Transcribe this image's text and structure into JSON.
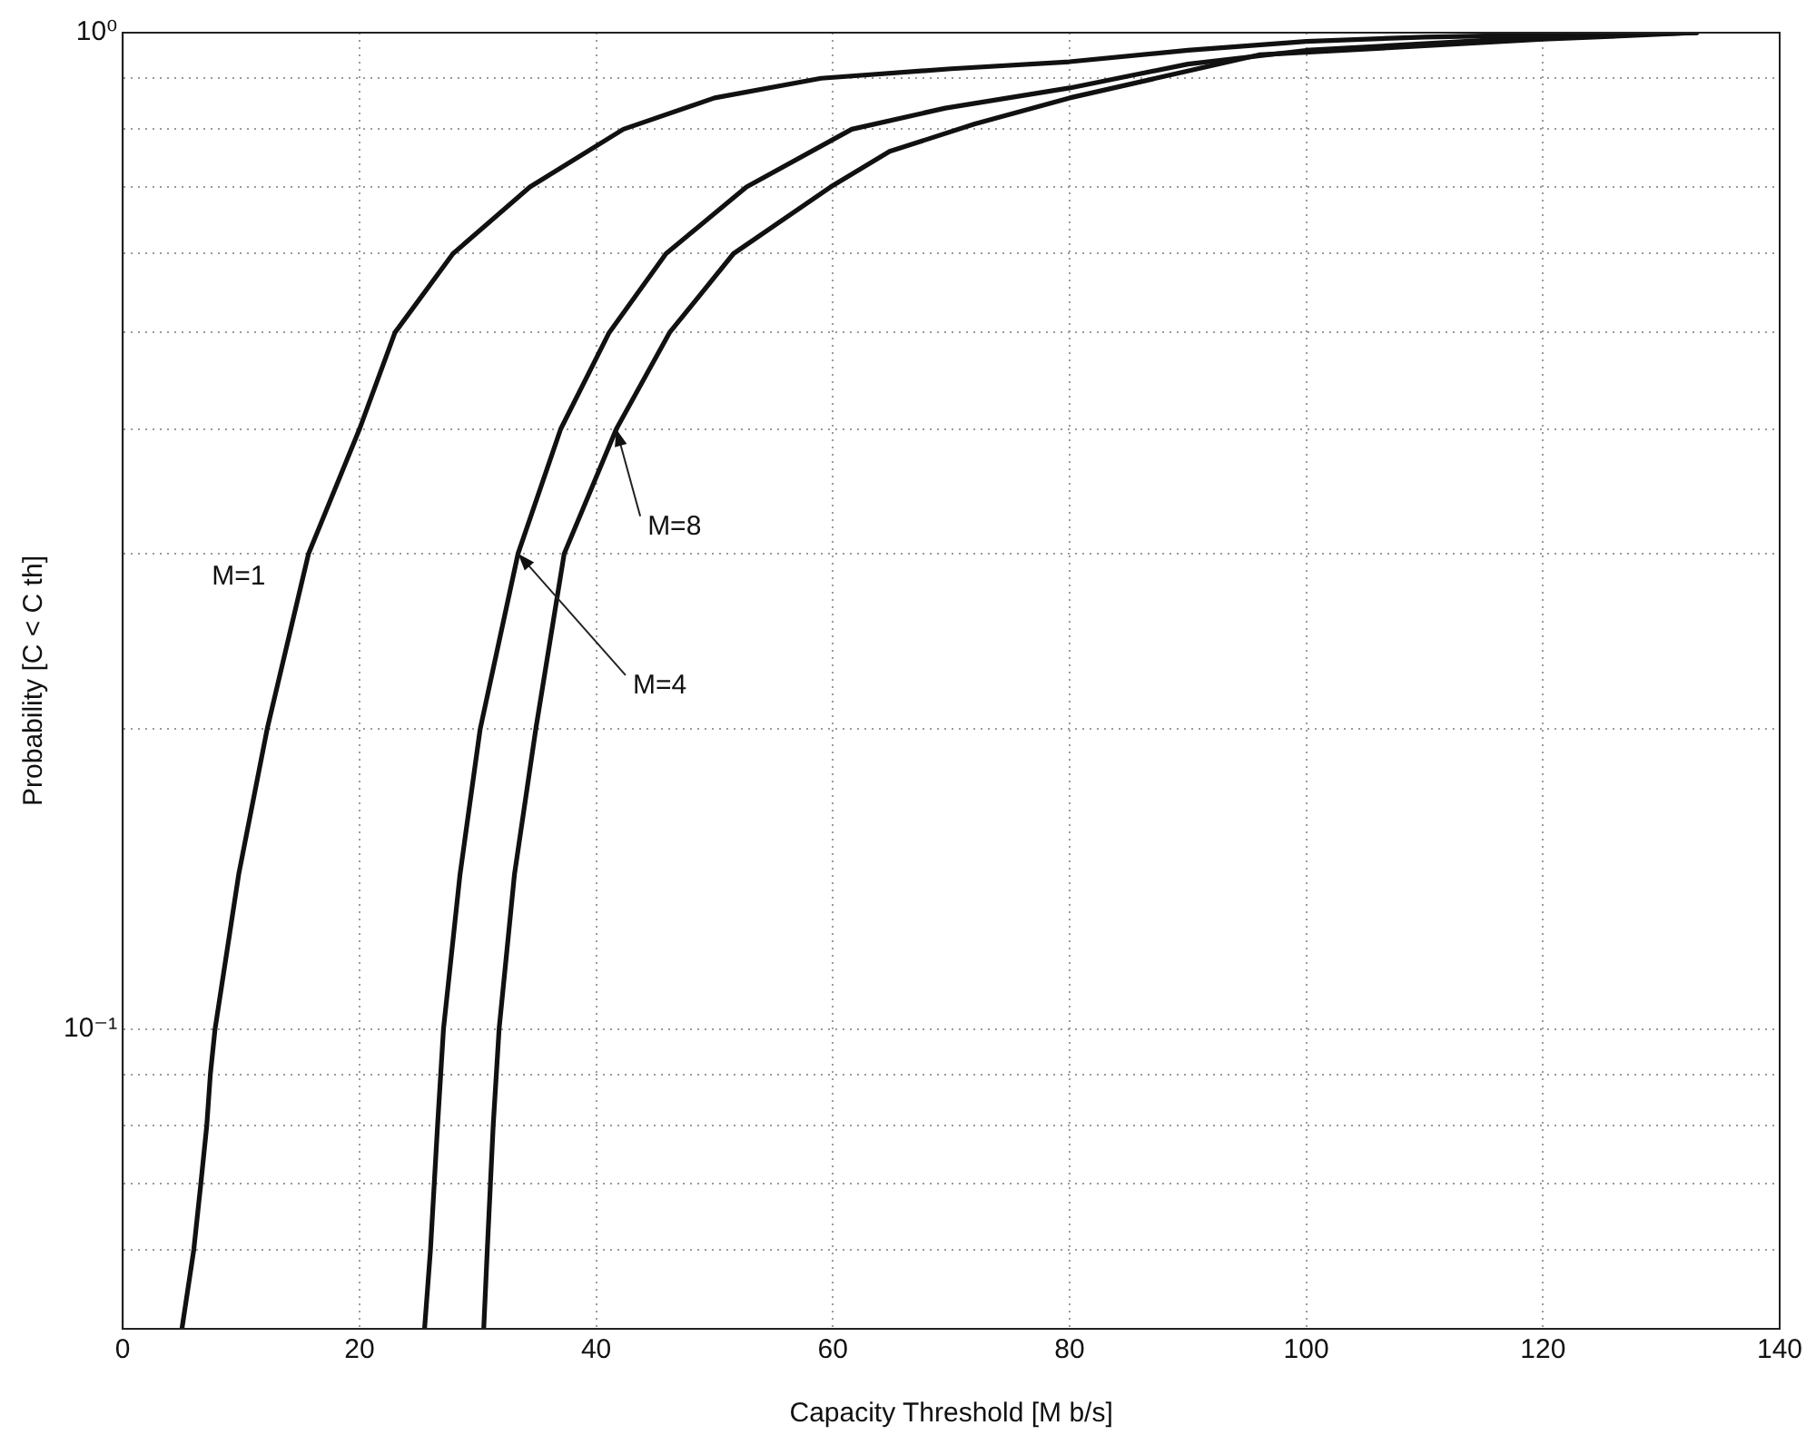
{
  "chart_data": {
    "type": "line",
    "xlabel": "Capacity Threshold [M b/s]",
    "ylabel": "Probability [C < C th]",
    "log": "y",
    "grid": true,
    "legend": false,
    "marker": "none",
    "line_style": "solid",
    "xlim": [
      0,
      140
    ],
    "xticks": [
      0,
      20,
      40,
      60,
      80,
      100,
      120,
      140
    ],
    "ylim": [
      0.05,
      1
    ],
    "yticks": [
      {
        "value": 0.05,
        "label": null
      },
      {
        "value": 0.06,
        "label": null
      },
      {
        "value": 0.07,
        "label": null
      },
      {
        "value": 0.08,
        "label": null
      },
      {
        "value": 0.09,
        "label": null
      },
      {
        "value": 0.1,
        "label": "10⁻¹"
      },
      {
        "value": 0.2,
        "label": null
      },
      {
        "value": 0.3,
        "label": null
      },
      {
        "value": 0.4,
        "label": null
      },
      {
        "value": 0.5,
        "label": null
      },
      {
        "value": 0.6,
        "label": null
      },
      {
        "value": 0.7,
        "label": null
      },
      {
        "value": 0.8,
        "label": null
      },
      {
        "value": 0.9,
        "label": null
      },
      {
        "value": 1,
        "label": "10⁰"
      }
    ],
    "series": [
      {
        "color": "#111111",
        "x": [
          5.0,
          6.0,
          6.6,
          7.1,
          7.4,
          7.8,
          9.8,
          12.2,
          15.7,
          20.0,
          23.0,
          27.9,
          34.4,
          42.3,
          50,
          59,
          70,
          80,
          90,
          100,
          110,
          120,
          133
        ],
        "values": [
          0.05,
          0.06,
          0.07,
          0.08,
          0.09,
          0.1,
          0.143,
          0.2,
          0.3,
          0.4,
          0.5,
          0.6,
          0.7,
          0.8,
          0.86,
          0.9,
          0.92,
          0.935,
          0.96,
          0.98,
          0.99,
          0.995,
          1
        ]
      },
      {
        "color": "#111111",
        "x": [
          25.5,
          26.0,
          26.6,
          27.1,
          28.5,
          30.2,
          33.4,
          37.0,
          41.1,
          45.9,
          52.7,
          61.6,
          69.5,
          80,
          90,
          100,
          110,
          120,
          133
        ],
        "values": [
          0.05,
          0.06,
          0.08,
          0.1,
          0.143,
          0.2,
          0.3,
          0.4,
          0.5,
          0.6,
          0.7,
          0.8,
          0.84,
          0.88,
          0.93,
          0.96,
          0.975,
          0.99,
          1
        ]
      },
      {
        "color": "#111111",
        "x": [
          30.5,
          30.8,
          31.3,
          31.8,
          33.1,
          34.9,
          37.3,
          41.7,
          46.2,
          51.6,
          59.8,
          64.8,
          72,
          80,
          96,
          110,
          120,
          133
        ],
        "values": [
          0.05,
          0.06,
          0.08,
          0.1,
          0.143,
          0.2,
          0.3,
          0.4,
          0.5,
          0.6,
          0.7,
          0.76,
          0.81,
          0.86,
          0.95,
          0.97,
          0.985,
          1
        ]
      }
    ],
    "annotations": [
      "M=1",
      {
        "text": "M=4",
        "x": 33.4,
        "y": 0.3
      },
      {
        "text": "M=8",
        "x": 41.7,
        "y": 0.4
      }
    ]
  }
}
